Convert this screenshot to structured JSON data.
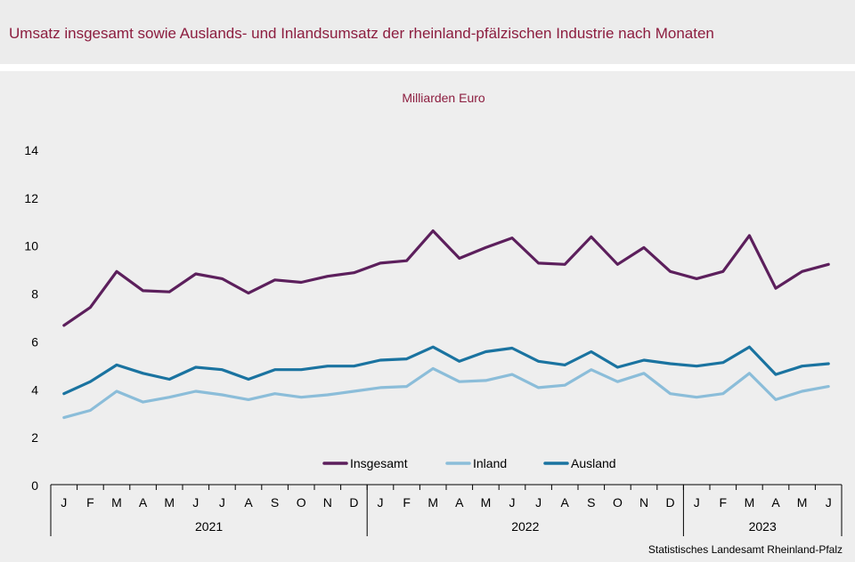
{
  "title": "Umsatz insgesamt sowie Auslands- und Inlandsumsatz der rheinland-pfälzischen Industrie nach Monaten",
  "source": "Statistisches Landesamt  Rheinland-Pfalz",
  "colors": {
    "title": "#8c1d3f",
    "background": "#eeeeee",
    "insgesamt": "#5c1f5c",
    "inland": "#8bbdd9",
    "ausland": "#1a73a0"
  },
  "chart_data": {
    "type": "line",
    "title": "",
    "ylabel": "Milliarden Euro",
    "xlabel": "",
    "ylim": [
      0,
      14
    ],
    "yticks": [
      0,
      2,
      4,
      6,
      8,
      10,
      12,
      14
    ],
    "grid": false,
    "legend_position": "bottom-center",
    "categories": [
      "J",
      "F",
      "M",
      "A",
      "M",
      "J",
      "J",
      "A",
      "S",
      "O",
      "N",
      "D",
      "J",
      "F",
      "M",
      "A",
      "M",
      "J",
      "J",
      "A",
      "S",
      "O",
      "N",
      "D",
      "J",
      "F",
      "M",
      "A",
      "M",
      "J"
    ],
    "years": [
      {
        "label": "2021",
        "months": 12
      },
      {
        "label": "2022",
        "months": 12
      },
      {
        "label": "2023",
        "months": 6
      }
    ],
    "series": [
      {
        "name": "Insgesamt",
        "color": "#5c1f5c",
        "values": [
          6.65,
          7.4,
          8.9,
          8.1,
          8.05,
          8.8,
          8.6,
          8.0,
          8.55,
          8.45,
          8.7,
          8.85,
          9.25,
          9.35,
          10.6,
          9.45,
          9.9,
          10.3,
          9.25,
          9.2,
          10.35,
          9.2,
          9.9,
          8.9,
          8.6,
          8.9,
          10.4,
          8.2,
          8.9,
          9.2
        ]
      },
      {
        "name": "Inland",
        "color": "#8bbdd9",
        "values": [
          2.8,
          3.1,
          3.9,
          3.45,
          3.65,
          3.9,
          3.75,
          3.55,
          3.8,
          3.65,
          3.75,
          3.9,
          4.05,
          4.1,
          4.85,
          4.3,
          4.35,
          4.6,
          4.05,
          4.15,
          4.8,
          4.3,
          4.65,
          3.8,
          3.65,
          3.8,
          4.65,
          3.55,
          3.9,
          4.1
        ]
      },
      {
        "name": "Ausland",
        "color": "#1a73a0",
        "values": [
          3.8,
          4.3,
          5.0,
          4.65,
          4.4,
          4.9,
          4.8,
          4.4,
          4.8,
          4.8,
          4.95,
          4.95,
          5.2,
          5.25,
          5.75,
          5.15,
          5.55,
          5.7,
          5.15,
          5.0,
          5.55,
          4.9,
          5.2,
          5.05,
          4.95,
          5.1,
          5.75,
          4.6,
          4.95,
          5.05
        ]
      }
    ]
  }
}
